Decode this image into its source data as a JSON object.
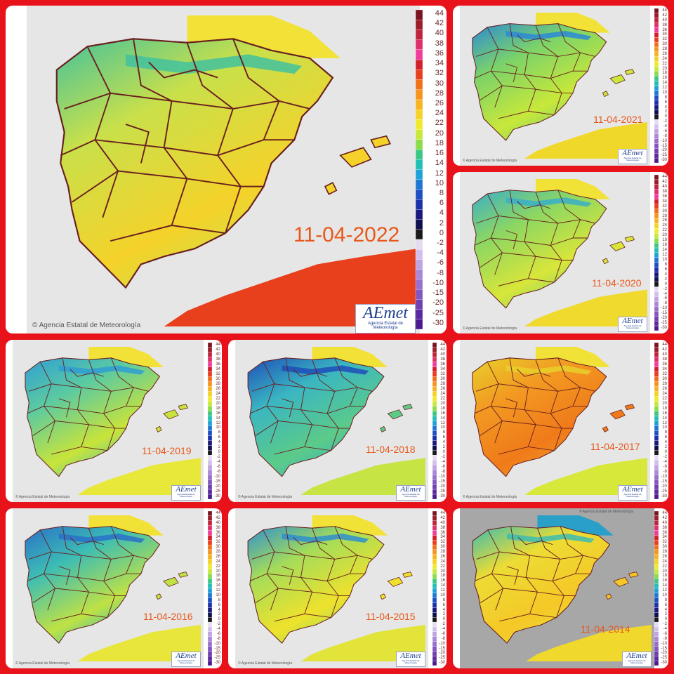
{
  "credit": "Agencia Estatal de Meteorología",
  "logo": {
    "mark": "AEmet",
    "sub": "Agencia Estatal de Meteorología"
  },
  "scale": {
    "labels": [
      "44",
      "42",
      "40",
      "38",
      "36",
      "34",
      "32",
      "30",
      "28",
      "26",
      "24",
      "22",
      "20",
      "18",
      "16",
      "14",
      "12",
      "10",
      "8",
      "6",
      "4",
      "2",
      "0",
      "-2",
      "-4",
      "-6",
      "-8",
      "-10",
      "-15",
      "-20",
      "-25",
      "-30"
    ],
    "colors": [
      "#7a1420",
      "#9c1c2a",
      "#c0243a",
      "#e0306a",
      "#f03c9a",
      "#d31f2c",
      "#e8401c",
      "#f0701a",
      "#f5951e",
      "#f7b422",
      "#f5d22a",
      "#f0ea2e",
      "#c8e83a",
      "#8cdc4a",
      "#3cc882",
      "#22bfb4",
      "#1ea2d6",
      "#1e78d2",
      "#1e50c2",
      "#1e32a8",
      "#1a1a7e",
      "#10104e",
      "#1a1a1a",
      "#e6dcf2",
      "#d2c0ea",
      "#bea4e0",
      "#aa88d6",
      "#9870cc",
      "#8456c0",
      "#7040b0",
      "#5c2aa0",
      "#4a1a8e"
    ]
  },
  "maps": [
    {
      "date": "11-04-2022",
      "mean": "#c9e04a",
      "hot": "#f5d22a",
      "cold": "#42c29e",
      "africa": "#e8401c"
    },
    {
      "date": "11-04-2021",
      "mean": "#7ad26a",
      "hot": "#c8e83a",
      "cold": "#2a8ad6",
      "africa": "#f0d82a"
    },
    {
      "date": "11-04-2020",
      "mean": "#8ad664",
      "hot": "#d8e63a",
      "cold": "#3aaec8",
      "africa": "#f0da2e"
    },
    {
      "date": "11-04-2019",
      "mean": "#5acaa2",
      "hot": "#c8e43a",
      "cold": "#2f9ed4",
      "africa": "#e8e83a"
    },
    {
      "date": "11-04-2018",
      "mean": "#3ab6c2",
      "hot": "#5ccb88",
      "cold": "#1e4eb8",
      "africa": "#c6e444"
    },
    {
      "date": "11-04-2017",
      "mean": "#f29a22",
      "hot": "#f07a1a",
      "cold": "#e8d02a",
      "africa": "#d8e83a"
    },
    {
      "date": "11-04-2016",
      "mean": "#3cbdb4",
      "hot": "#bfe244",
      "cold": "#2a70c8",
      "africa": "#e8e63a"
    },
    {
      "date": "11-04-2015",
      "mean": "#a4dc5a",
      "hot": "#eee22c",
      "cold": "#2e8fcf",
      "africa": "#e2e43a"
    },
    {
      "date": "11-04-2014",
      "mean": "#ecdc34",
      "hot": "#f5c828",
      "cold": "#3cbcb0",
      "africa": "#f0d82c"
    }
  ]
}
